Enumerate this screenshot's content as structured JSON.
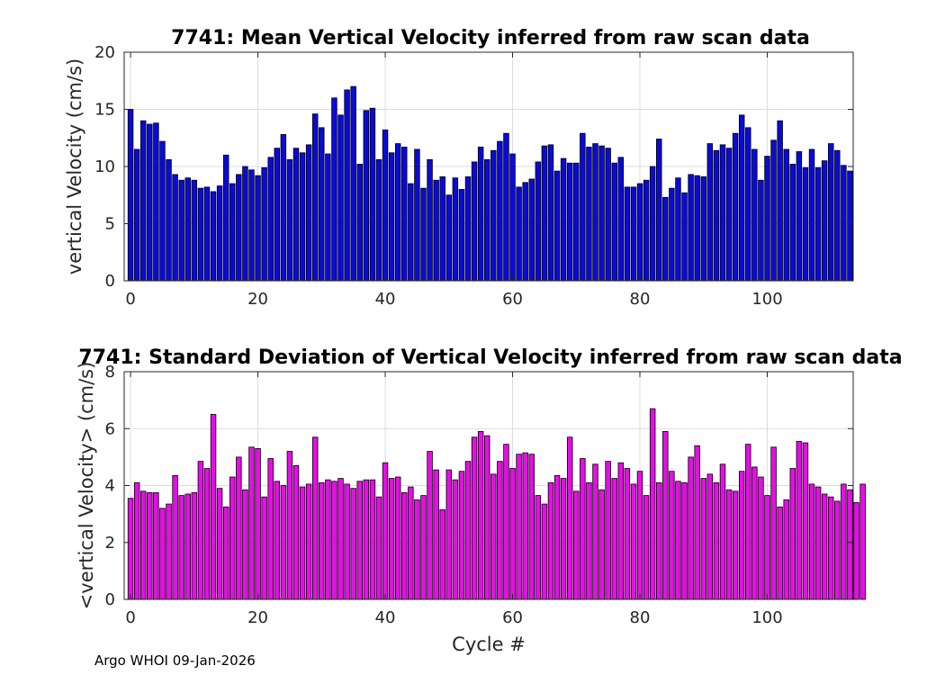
{
  "footer": "Argo WHOI 09-Jan-2026",
  "chart_data": [
    {
      "type": "bar",
      "title": "7741: Mean Vertical Velocity inferred from raw scan data",
      "xlabel": "",
      "ylabel": "vertical Velocity (cm/s)",
      "xlim": [
        -1,
        113.5
      ],
      "ylim": [
        0,
        20
      ],
      "xticks": [
        0,
        20,
        40,
        60,
        80,
        100
      ],
      "yticks": [
        0,
        5,
        10,
        15,
        20
      ],
      "grid": true,
      "bar_color": "#0a0ad8",
      "x_start": 0,
      "values": [
        15.0,
        11.5,
        14.0,
        13.7,
        13.8,
        12.2,
        10.6,
        9.3,
        8.8,
        9.0,
        8.8,
        8.1,
        8.2,
        7.8,
        8.3,
        11.0,
        8.5,
        9.3,
        10.0,
        9.7,
        9.2,
        9.9,
        10.8,
        11.6,
        12.8,
        10.6,
        11.6,
        11.2,
        11.9,
        14.6,
        13.4,
        11.1,
        16.0,
        14.5,
        16.7,
        17.0,
        10.2,
        14.9,
        15.1,
        10.6,
        13.2,
        11.2,
        12.0,
        11.7,
        8.5,
        11.5,
        8.1,
        10.6,
        8.8,
        9.1,
        7.5,
        9.0,
        8.0,
        9.1,
        10.4,
        11.7,
        10.6,
        11.4,
        12.2,
        12.9,
        11.1,
        8.2,
        8.6,
        8.9,
        10.4,
        11.8,
        11.9,
        9.6,
        10.7,
        10.3,
        10.3,
        12.9,
        11.7,
        12.0,
        11.8,
        11.6,
        10.3,
        10.8,
        8.2,
        8.2,
        8.5,
        8.8,
        10.0,
        12.4,
        7.3,
        8.1,
        9.0,
        7.7,
        9.3,
        9.2,
        9.1,
        12.0,
        11.4,
        11.9,
        11.6,
        12.9,
        14.5,
        13.4,
        11.5,
        8.8,
        10.9,
        12.3,
        14.0,
        11.5,
        10.2,
        11.3,
        9.9,
        11.5,
        9.9,
        10.5,
        12.0,
        11.4,
        10.1,
        9.6
      ]
    },
    {
      "type": "bar",
      "title": "7741: Standard Deviation of Vertical Velocity inferred from raw scan data",
      "xlabel": "Cycle #",
      "ylabel": "<vertical Velocity> (cm/s)",
      "xlim": [
        -1,
        113.5
      ],
      "ylim": [
        0,
        8
      ],
      "xticks": [
        0,
        20,
        40,
        60,
        80,
        100
      ],
      "yticks": [
        0,
        2,
        4,
        6,
        8
      ],
      "grid": true,
      "bar_color": "#e60ee6",
      "x_start": 0,
      "values": [
        3.55,
        4.1,
        3.8,
        3.75,
        3.75,
        3.2,
        3.35,
        4.35,
        3.65,
        3.7,
        3.75,
        4.85,
        4.6,
        6.5,
        3.9,
        3.25,
        4.3,
        5.0,
        3.85,
        5.35,
        5.3,
        3.6,
        4.95,
        4.15,
        4.0,
        5.2,
        4.7,
        3.95,
        4.05,
        5.7,
        4.1,
        4.2,
        4.15,
        4.25,
        4.05,
        3.9,
        4.15,
        4.2,
        4.2,
        3.6,
        4.8,
        4.25,
        4.3,
        3.75,
        3.95,
        3.5,
        3.65,
        5.2,
        4.55,
        3.15,
        4.55,
        4.2,
        4.5,
        4.85,
        5.7,
        5.9,
        5.75,
        4.4,
        4.85,
        5.45,
        4.6,
        5.1,
        5.15,
        5.1,
        3.65,
        3.35,
        4.1,
        4.35,
        4.25,
        5.7,
        3.8,
        4.95,
        4.1,
        4.75,
        3.85,
        4.85,
        4.25,
        4.8,
        4.6,
        4.05,
        4.5,
        3.65,
        6.7,
        4.1,
        5.9,
        4.5,
        4.15,
        4.1,
        5.0,
        5.4,
        4.25,
        4.4,
        4.1,
        4.75,
        3.85,
        3.8,
        4.5,
        5.45,
        4.65,
        4.3,
        3.65,
        5.35,
        3.25,
        3.5,
        4.6,
        5.55,
        5.5,
        4.05,
        3.95,
        3.7,
        3.6,
        3.45,
        4.05,
        3.85,
        3.4,
        4.05
      ]
    }
  ]
}
